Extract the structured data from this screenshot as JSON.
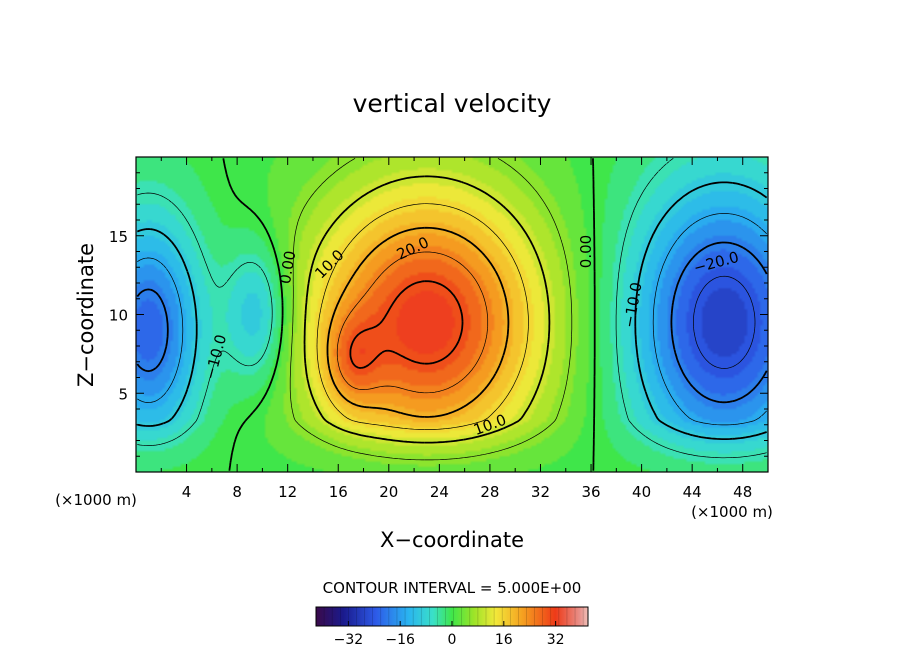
{
  "chart_data": {
    "type": "heatmap",
    "title": "vertical velocity",
    "xlabel": "X−coordinate",
    "ylabel": "Z−coordinate",
    "x_unit": "(×1000 m)",
    "z_unit": "(×1000 m)",
    "xlim": [
      0,
      50
    ],
    "ylim": [
      0,
      20
    ],
    "x_ticks": [
      4,
      8,
      12,
      16,
      20,
      24,
      28,
      32,
      36,
      40,
      44,
      48
    ],
    "x_tick_labels": [
      "4",
      "8",
      "12",
      "16",
      "20",
      "24",
      "28",
      "32",
      "36",
      "40",
      "44",
      "48"
    ],
    "y_ticks": [
      5,
      10,
      15
    ],
    "y_tick_labels": [
      "5",
      "10",
      "15"
    ],
    "contour_interval_text": "CONTOUR INTERVAL = 5.000E+00",
    "contour_interval": 5.0,
    "contour_labels": [
      {
        "text": "0.00",
        "x": 12.0,
        "z": 13.0,
        "rotation": -80
      },
      {
        "text": "10.0",
        "x": 15.3,
        "z": 13.2,
        "rotation": -45
      },
      {
        "text": "20.0",
        "x": 21.9,
        "z": 14.2,
        "rotation": -25
      },
      {
        "text": "0.00",
        "x": 35.6,
        "z": 14.0,
        "rotation": -90
      },
      {
        "text": "−20.0",
        "x": 45.9,
        "z": 13.3,
        "rotation": -15
      },
      {
        "text": "−10.0",
        "x": 39.3,
        "z": 10.6,
        "rotation": -80
      },
      {
        "text": "−10.0",
        "x": 6.3,
        "z": 7.3,
        "rotation": -75
      },
      {
        "text": "10.0",
        "x": 28.0,
        "z": 3.0,
        "rotation": -20
      }
    ],
    "field_features": [
      {
        "kind": "updraft",
        "x": 23.0,
        "z": 9.5,
        "peak": 33
      },
      {
        "kind": "downdraft",
        "x": 46.5,
        "z": 9.5,
        "peak": -28
      },
      {
        "kind": "downdraft",
        "x": 1.0,
        "z": 9.0,
        "peak": -23
      },
      {
        "kind": "downdraft",
        "x": 9.6,
        "z": 10.0,
        "peak": -13
      }
    ],
    "colorbar": {
      "range": [
        -42,
        42
      ],
      "ticks": [
        -32,
        -16,
        0,
        16,
        32
      ],
      "tick_labels": [
        "−32",
        "−16",
        "0",
        "16",
        "32"
      ]
    }
  }
}
